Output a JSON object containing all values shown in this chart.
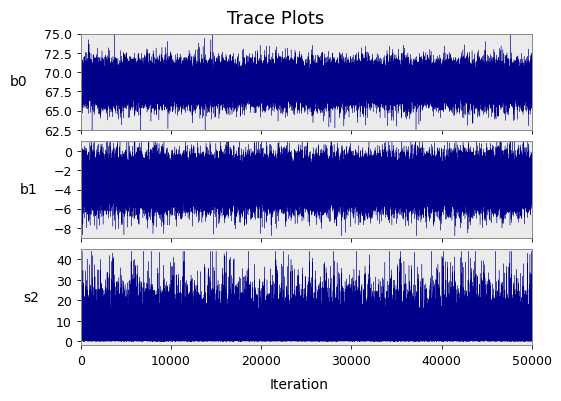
{
  "title": "Trace Plots",
  "xlabel": "Iteration",
  "n_iter": 50000,
  "panels": [
    {
      "label": "b0",
      "mean": 68.5,
      "std": 1.4,
      "ylim": [
        62.5,
        75.0
      ],
      "yticks": [
        62.5,
        65.0,
        67.5,
        70.0,
        72.5,
        75.0
      ]
    },
    {
      "label": "b1",
      "mean": -3.3,
      "std": 1.4,
      "ylim": [
        -9,
        1
      ],
      "yticks": [
        -8,
        -6,
        -4,
        -2,
        0
      ]
    },
    {
      "label": "s2",
      "mean": 6.0,
      "std": 4.0,
      "ylim": [
        -2,
        45
      ],
      "yticks": [
        0,
        10,
        20,
        30,
        40
      ]
    }
  ],
  "line_color": "#00008B",
  "line_width": 0.25,
  "bg_color": "#EBEBEB",
  "outer_bg": "#FFFFFF",
  "title_fontsize": 13,
  "label_fontsize": 10,
  "tick_fontsize": 9,
  "xticks": [
    0,
    10000,
    20000,
    30000,
    40000,
    50000
  ],
  "xtick_labels": [
    "0",
    "10000",
    "20000",
    "30000",
    "40000",
    "50000"
  ]
}
